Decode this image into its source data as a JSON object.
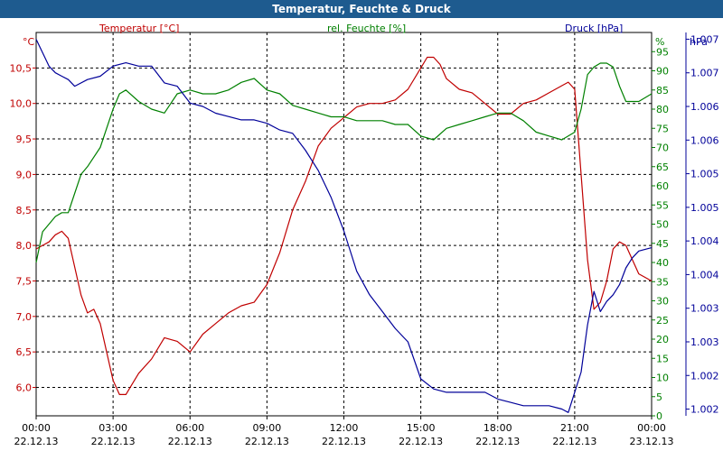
{
  "window": {
    "title": "Temperatur, Feuchte & Druck"
  },
  "colors": {
    "temperature": "#c00000",
    "humidity": "#008000",
    "pressure": "#000099",
    "axis_text": "#000000",
    "grid": "#000000",
    "titlebar": "#1e5b8f"
  },
  "chart_data": {
    "type": "line",
    "title": "Temperatur, Feuchte & Druck",
    "grid": true,
    "x_ticks": [
      {
        "time": "00:00",
        "date": "22.12.13"
      },
      {
        "time": "03:00",
        "date": "22.12.13"
      },
      {
        "time": "06:00",
        "date": "22.12.13"
      },
      {
        "time": "09:00",
        "date": "22.12.13"
      },
      {
        "time": "12:00",
        "date": "22.12.13"
      },
      {
        "time": "15:00",
        "date": "22.12.13"
      },
      {
        "time": "18:00",
        "date": "22.12.13"
      },
      {
        "time": "21:00",
        "date": "22.12.13"
      },
      {
        "time": "00:00",
        "date": "23.12.13"
      }
    ],
    "xlim_hours": [
      0,
      24
    ],
    "axes": {
      "temperature": {
        "unit": "°C",
        "ylim": [
          5.6,
          11.0
        ],
        "ticks": [
          6.0,
          6.5,
          7.0,
          7.5,
          8.0,
          8.5,
          9.0,
          9.5,
          10.0,
          10.5
        ],
        "tick_labels": [
          "6,0",
          "6,5",
          "7,0",
          "7,5",
          "8,0",
          "8,5",
          "9,0",
          "9,5",
          "10,0",
          "10,5"
        ]
      },
      "humidity": {
        "unit": "%",
        "ylim": [
          0,
          100
        ],
        "ticks": [
          0,
          5,
          10,
          15,
          20,
          25,
          30,
          35,
          40,
          45,
          50,
          55,
          60,
          65,
          70,
          75,
          80,
          85,
          90,
          95
        ],
        "tick_labels": [
          "0",
          "5",
          "10",
          "15",
          "20",
          "25",
          "30",
          "35",
          "40",
          "45",
          "50",
          "55",
          "60",
          "65",
          "70",
          "75",
          "80",
          "85",
          "90",
          "95"
        ]
      },
      "pressure": {
        "unit": "hPa",
        "ylim": [
          1001.65,
          1007.35
        ],
        "ticks": [
          1001.75,
          1002.25,
          1002.75,
          1003.25,
          1003.75,
          1004.25,
          1004.75,
          1005.25,
          1005.75,
          1006.25,
          1006.75,
          1007.25
        ],
        "tick_labels": [
          "1.002",
          "1.002",
          "1.003",
          "1.003",
          "1.004",
          "1.004",
          "1.005",
          "1.005",
          "1.006",
          "1.006",
          "1.007",
          "1.007"
        ]
      }
    },
    "series": [
      {
        "name": "Temperatur [°C]",
        "axis": "temperature",
        "color": "#c00000",
        "x": [
          0,
          0.25,
          0.5,
          0.75,
          1,
          1.25,
          1.5,
          1.75,
          2,
          2.25,
          2.5,
          2.75,
          3,
          3.25,
          3.5,
          3.75,
          4,
          4.5,
          5,
          5.5,
          6,
          6.5,
          7,
          7.5,
          8,
          8.5,
          9,
          9.5,
          10,
          10.5,
          11,
          11.5,
          12,
          12.5,
          13,
          13.5,
          14,
          14.5,
          15,
          15.25,
          15.5,
          15.75,
          16,
          16.5,
          17,
          17.5,
          18,
          18.5,
          19,
          19.5,
          20,
          20.5,
          20.75,
          21,
          21.25,
          21.5,
          21.75,
          22,
          22.25,
          22.5,
          22.75,
          23,
          23.25,
          23.5,
          24
        ],
        "y": [
          7.95,
          8.0,
          8.05,
          8.15,
          8.2,
          8.1,
          7.7,
          7.3,
          7.05,
          7.1,
          6.9,
          6.5,
          6.1,
          5.9,
          5.9,
          6.05,
          6.2,
          6.4,
          6.7,
          6.65,
          6.5,
          6.75,
          6.9,
          7.05,
          7.15,
          7.2,
          7.45,
          7.9,
          8.5,
          8.9,
          9.4,
          9.65,
          9.8,
          9.95,
          10.0,
          10.0,
          10.05,
          10.2,
          10.5,
          10.65,
          10.65,
          10.55,
          10.35,
          10.2,
          10.15,
          10.0,
          9.85,
          9.85,
          10.0,
          10.05,
          10.15,
          10.25,
          10.3,
          10.2,
          9.0,
          7.8,
          7.1,
          7.2,
          7.5,
          7.95,
          8.05,
          8.0,
          7.8,
          7.6,
          7.5
        ]
      },
      {
        "name": "rel. Feuchte [%]",
        "axis": "humidity",
        "color": "#008000",
        "x": [
          0,
          0.25,
          0.5,
          0.75,
          1,
          1.25,
          1.5,
          1.75,
          2,
          2.5,
          3,
          3.25,
          3.5,
          4,
          4.5,
          5,
          5.5,
          6,
          6.5,
          7,
          7.5,
          8,
          8.5,
          9,
          9.5,
          10,
          10.5,
          11,
          11.5,
          12,
          12.5,
          13,
          13.5,
          14,
          14.5,
          15,
          15.5,
          16,
          16.5,
          17,
          17.5,
          18,
          18.5,
          19,
          19.5,
          20,
          20.5,
          21,
          21.25,
          21.5,
          21.75,
          22,
          22.25,
          22.5,
          22.75,
          23,
          23.5,
          24
        ],
        "y": [
          40,
          48,
          50,
          52,
          53,
          53,
          58,
          63,
          65,
          70,
          80,
          84,
          85,
          82,
          80,
          79,
          84,
          85,
          84,
          84,
          85,
          87,
          88,
          85,
          84,
          81,
          80,
          79,
          78,
          78,
          77,
          77,
          77,
          76,
          76,
          73,
          72,
          75,
          76,
          77,
          78,
          79,
          79,
          77,
          74,
          73,
          72,
          74,
          80,
          89,
          91,
          92,
          92,
          91,
          86,
          82,
          82,
          84
        ]
      },
      {
        "name": "Druck [hPa]",
        "axis": "pressure",
        "color": "#000099",
        "x": [
          0,
          0.25,
          0.5,
          0.75,
          1,
          1.25,
          1.5,
          2,
          2.5,
          3,
          3.5,
          4,
          4.5,
          5,
          5.5,
          6,
          6.5,
          7,
          7.5,
          8,
          8.5,
          9,
          9.5,
          10,
          10.5,
          11,
          11.5,
          12,
          12.5,
          13,
          13.5,
          14,
          14.5,
          15,
          15.5,
          16,
          16.5,
          17,
          17.5,
          18,
          18.5,
          19,
          19.5,
          20,
          20.5,
          20.75,
          21,
          21.25,
          21.5,
          21.75,
          22,
          22.25,
          22.5,
          22.75,
          23,
          23.25,
          23.5,
          24
        ],
        "y": [
          1007.25,
          1007.05,
          1006.85,
          1006.75,
          1006.7,
          1006.65,
          1006.55,
          1006.65,
          1006.7,
          1006.85,
          1006.9,
          1006.85,
          1006.85,
          1006.6,
          1006.55,
          1006.3,
          1006.25,
          1006.15,
          1006.1,
          1006.05,
          1006.05,
          1006.0,
          1005.9,
          1005.85,
          1005.6,
          1005.3,
          1004.9,
          1004.4,
          1003.8,
          1003.45,
          1003.2,
          1002.95,
          1002.75,
          1002.2,
          1002.05,
          1002.0,
          1002.0,
          1002.0,
          1002.0,
          1001.9,
          1001.85,
          1001.8,
          1001.8,
          1001.8,
          1001.75,
          1001.7,
          1002.0,
          1002.3,
          1003.0,
          1003.5,
          1003.2,
          1003.35,
          1003.45,
          1003.6,
          1003.85,
          1004.0,
          1004.1,
          1004.15
        ]
      }
    ]
  }
}
